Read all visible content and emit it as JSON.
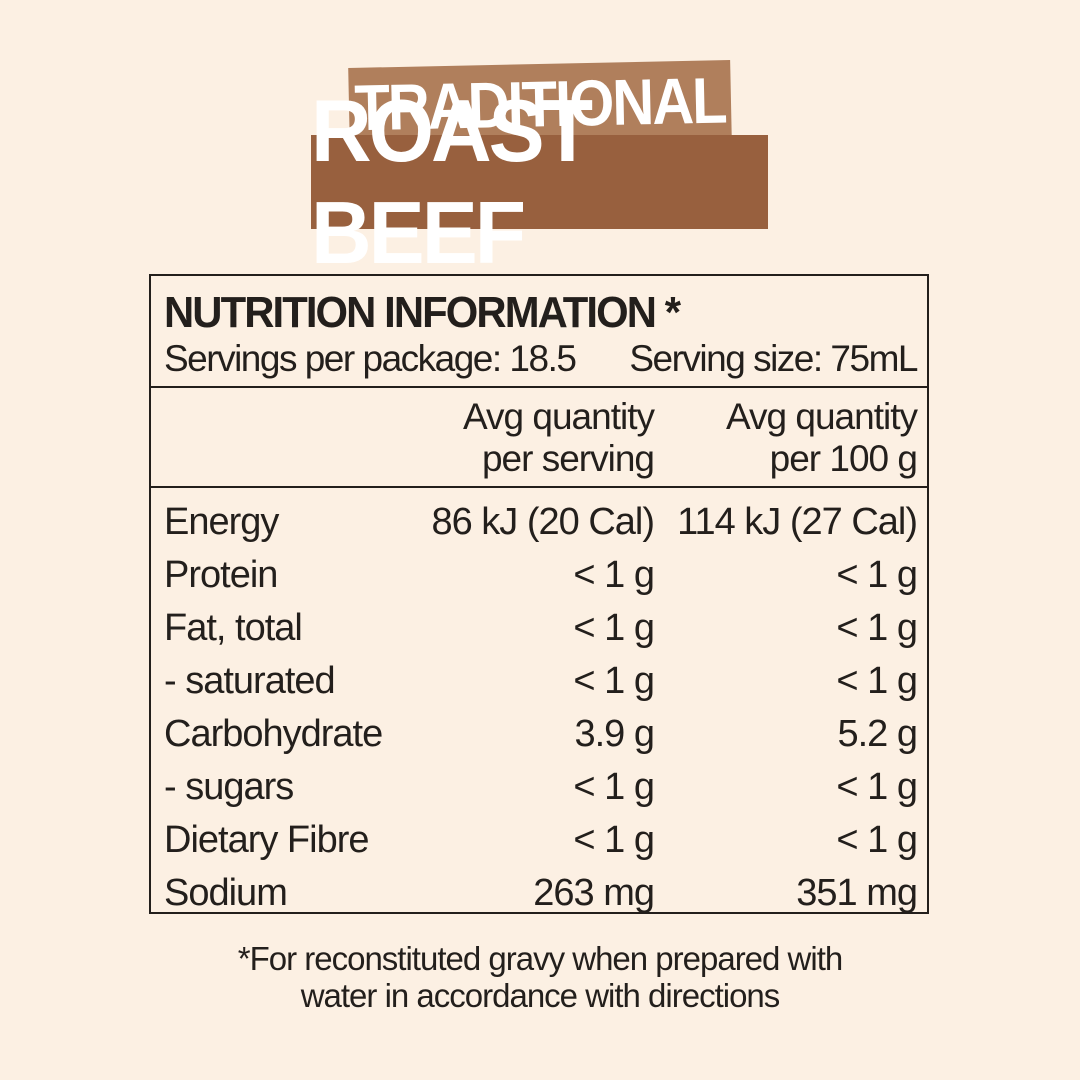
{
  "product": {
    "title_line1": "TRADITIONAL",
    "title_line2": "ROAST BEEF"
  },
  "nutrition": {
    "heading": "NUTRITION INFORMATION *",
    "servings_per_package": "Servings per package: 18.5",
    "serving_size": "Serving size: 75mL",
    "column_headers": [
      {
        "line1": "Avg quantity",
        "line2": "per serving"
      },
      {
        "line1": "Avg quantity",
        "line2": "per 100 g"
      }
    ],
    "rows": [
      {
        "nutrient": "Energy",
        "per_serving": "86 kJ (20 Cal)",
        "per_100g": "114 kJ (27 Cal)"
      },
      {
        "nutrient": "Protein",
        "per_serving": "< 1 g",
        "per_100g": "< 1 g"
      },
      {
        "nutrient": "Fat, total",
        "per_serving": "< 1 g",
        "per_100g": "< 1 g"
      },
      {
        "nutrient": "- saturated",
        "per_serving": "< 1 g",
        "per_100g": "< 1 g"
      },
      {
        "nutrient": "Carbohydrate",
        "per_serving": "3.9 g",
        "per_100g": "5.2 g"
      },
      {
        "nutrient": "- sugars",
        "per_serving": "< 1 g",
        "per_100g": "< 1 g"
      },
      {
        "nutrient": "Dietary Fibre",
        "per_serving": "< 1 g",
        "per_100g": "< 1 g"
      },
      {
        "nutrient": "Sodium",
        "per_serving": "263 mg",
        "per_100g": "351 mg"
      }
    ]
  },
  "footnote": {
    "line1": "*For reconstituted gravy when prepared with",
    "line2": "water in accordance with directions"
  },
  "colors": {
    "background": "#fcf0e3",
    "banner_light": "#b07f5c",
    "banner_dark": "#98603e",
    "text": "#231f1c"
  }
}
